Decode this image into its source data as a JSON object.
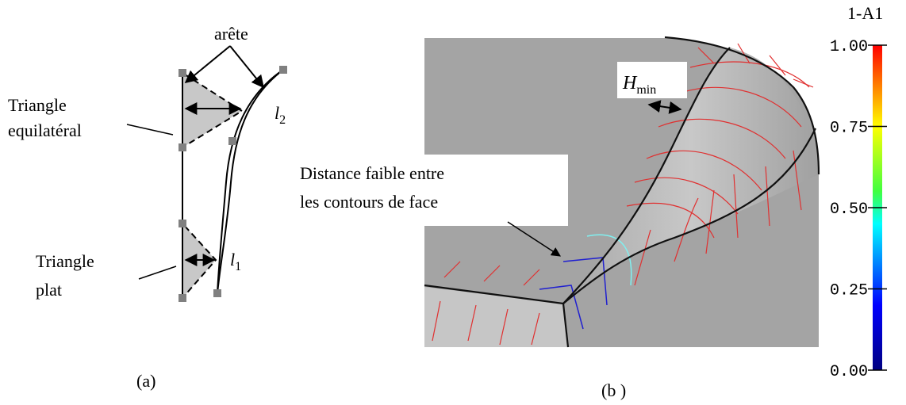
{
  "panel_a": {
    "edge_label": "arête",
    "triangle_eq": [
      "Triangle",
      "equilatéral"
    ],
    "l2": {
      "base": "l",
      "sub": "2"
    },
    "triangle_flat": [
      "Triangle",
      "plat"
    ],
    "l1": {
      "base": "l",
      "sub": "1"
    },
    "caption": "(a)"
  },
  "panel_b": {
    "hmin": {
      "base": "H",
      "sub": "min"
    },
    "note": [
      "Distance faible entre",
      "les contours de face"
    ],
    "caption": "(b )"
  },
  "colorbar": {
    "title": "1-A1",
    "ticks": [
      "1.00",
      "0.75",
      "0.50",
      "0.25",
      "0.00"
    ]
  }
}
